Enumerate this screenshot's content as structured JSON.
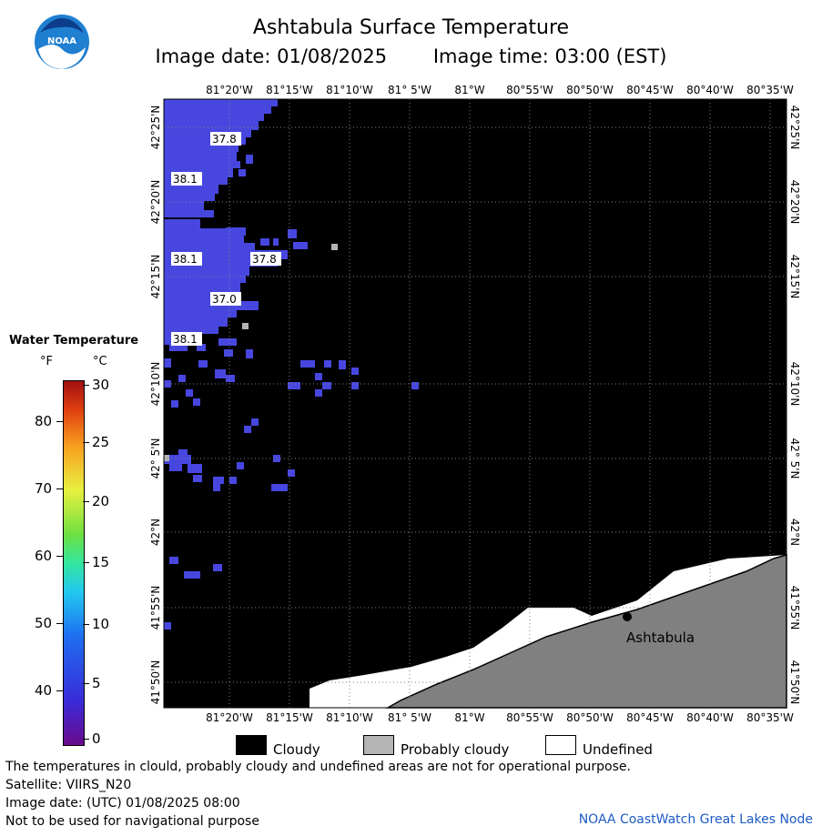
{
  "header": {
    "title": "Ashtabula Surface Temperature",
    "image_date": "Image date: 01/08/2025",
    "image_time": "Image time: 03:00 (EST)"
  },
  "logo": {
    "text": "NOAA",
    "icon": "noaa-logo"
  },
  "map": {
    "lon_labels": [
      "81°20'W",
      "81°15'W",
      "81°10'W",
      "81° 5'W",
      "81°W",
      "80°55'W",
      "80°50'W",
      "80°45'W",
      "80°40'W",
      "80°35'W"
    ],
    "lat_labels": [
      "42°25'N",
      "42°20'N",
      "42°15'N",
      "42°10'N",
      "42° 5'N",
      "42°N",
      "41°55'N",
      "41°50'N"
    ],
    "temp_labels": [
      "37.8",
      "38.1",
      "38.1",
      "37.8",
      "37.0",
      "38.1"
    ],
    "city": "Ashtabula",
    "colors": {
      "cloud": "#000000",
      "water": "#4747e0",
      "land": "#808080",
      "undefined": "#ffffff",
      "probably_cloudy": "#b4b4b4"
    }
  },
  "colorbar": {
    "title": "Water Temperature",
    "unit_f": "°F",
    "unit_c": "°C",
    "f_ticks": [
      "80",
      "70",
      "60",
      "50",
      "40"
    ],
    "c_ticks": [
      "30",
      "25",
      "20",
      "15",
      "10",
      "5",
      "0"
    ]
  },
  "legend": {
    "cloudy": "Cloudy",
    "probably_cloudy": "Probably cloudy",
    "undefined": "Undefined"
  },
  "footer": {
    "line1": "The temperatures in clould, probably cloudy and undefined areas are not for operational purpose.",
    "line2": "Satellite: VIIRS_N20",
    "line3": "Image date: (UTC) 01/08/2025  08:00",
    "line4": "Not to be used for navigational purpose",
    "credit": "NOAA CoastWatch Great Lakes Node"
  }
}
